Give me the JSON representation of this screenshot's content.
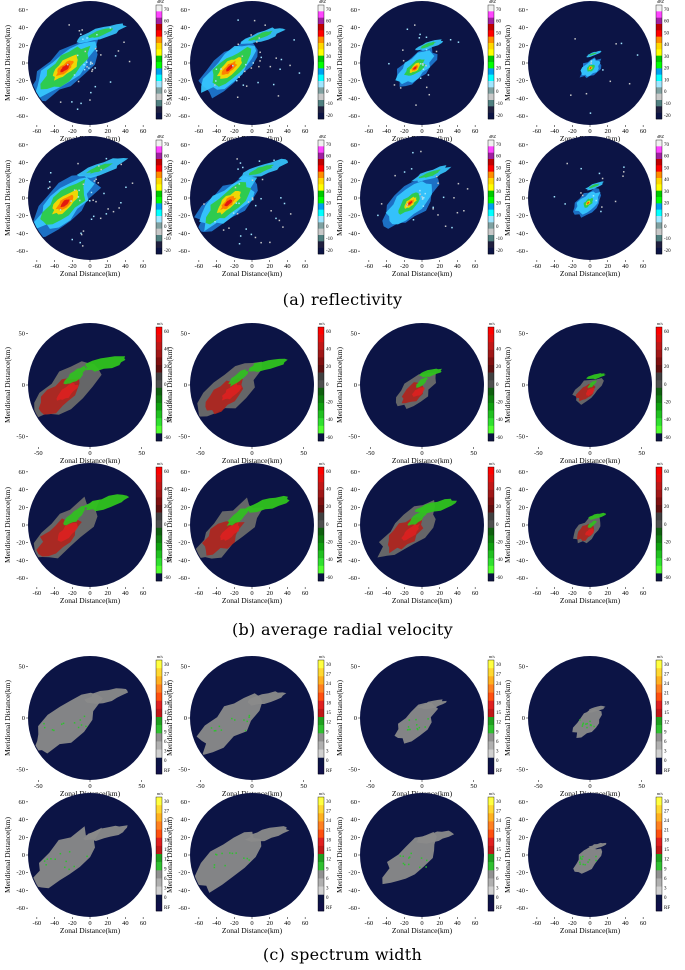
{
  "figure": {
    "captions": {
      "a": "(a)  reflectivity",
      "b": "(b)  average radial velocity",
      "c": "(c)  spectrum width"
    }
  },
  "colors": {
    "background_disk": "#0c1445",
    "echo_gray": "#8a8a8a",
    "velocity_green": "#2fc21e",
    "velocity_red": "#b0221c"
  },
  "chart_data": [
    {
      "id": "reflectivity",
      "type": "heatmap",
      "variable": "reflectivity",
      "xlabel": "Zonal Distance(km)",
      "ylabel": "Meridional Distance(km)",
      "colorbar": {
        "unit": "dBZ",
        "ticks": [
          "70",
          "60",
          "50",
          "40",
          "30",
          "20",
          "10",
          "0",
          "-10",
          "-20"
        ],
        "colors": [
          "#f0f0f0",
          "#ff44ff",
          "#a020a0",
          "#c00000",
          "#ff0000",
          "#ff8c00",
          "#ffd700",
          "#ffff00",
          "#00c800",
          "#00ff00",
          "#00a0f0",
          "#00ffff",
          "#a0e6ff",
          "#7fa0a0",
          "#c8c8c8",
          "#508080",
          "#202040",
          "#0c1445"
        ]
      },
      "rows": [
        {
          "xlim": [
            -70,
            70
          ],
          "ylim": [
            -70,
            70
          ],
          "xticks": [
            "-60",
            "-40",
            "-20",
            "0",
            "20",
            "40",
            "60"
          ],
          "yticks": [
            "60",
            "40",
            "20",
            "0",
            "-20",
            "-40",
            "-60"
          ],
          "panels": [
            {
              "intensity": 0.95,
              "echo_extent": 1.0
            },
            {
              "intensity": 0.9,
              "echo_extent": 0.9
            },
            {
              "intensity": 0.6,
              "echo_extent": 0.6
            },
            {
              "intensity": 0.45,
              "echo_extent": 0.3
            }
          ]
        },
        {
          "xlim": [
            -70,
            70
          ],
          "ylim": [
            -70,
            70
          ],
          "xticks": [
            "-60",
            "-40",
            "-20",
            "0",
            "20",
            "40",
            "60"
          ],
          "yticks": [
            "60",
            "40",
            "20",
            "0",
            "-20",
            "-40",
            "-60"
          ],
          "panels": [
            {
              "intensity": 0.95,
              "echo_extent": 1.0
            },
            {
              "intensity": 0.9,
              "echo_extent": 0.95
            },
            {
              "intensity": 0.55,
              "echo_extent": 0.8
            },
            {
              "intensity": 0.4,
              "echo_extent": 0.4
            }
          ]
        }
      ]
    },
    {
      "id": "velocity",
      "type": "heatmap",
      "variable": "average radial velocity",
      "xlabel": "Zonal Distance(km)",
      "ylabel": "Meridional Distance(km)",
      "colorbar": {
        "unit": "m/s",
        "ticks": [
          "60",
          "40",
          "20",
          "0",
          "-20",
          "-40",
          "-60"
        ],
        "colors": [
          "#ff0000",
          "#e01010",
          "#c01818",
          "#a01818",
          "#801010",
          "#601010",
          "#404040",
          "#505050",
          "#106010",
          "#108010",
          "#10a010",
          "#20c020",
          "#30e030",
          "#50ff30",
          "#0c1445"
        ]
      },
      "rows": [
        {
          "xlim": [
            -60,
            60
          ],
          "ylim": [
            -60,
            60
          ],
          "xticks": [
            "-50",
            "0",
            "50"
          ],
          "yticks": [
            "50",
            "0",
            "-50"
          ],
          "panels": [
            {
              "intensity": 1.0,
              "echo_extent": 1.0
            },
            {
              "intensity": 1.0,
              "echo_extent": 0.9
            },
            {
              "intensity": 0.8,
              "echo_extent": 0.55
            },
            {
              "intensity": 0.6,
              "echo_extent": 0.4
            }
          ]
        },
        {
          "xlim": [
            -70,
            70
          ],
          "ylim": [
            -70,
            70
          ],
          "xticks": [
            "-60",
            "-40",
            "-20",
            "0",
            "20",
            "40",
            "60"
          ],
          "yticks": [
            "60",
            "40",
            "20",
            "0",
            "-20",
            "-40",
            "-60"
          ],
          "panels": [
            {
              "intensity": 1.0,
              "echo_extent": 1.0
            },
            {
              "intensity": 1.0,
              "echo_extent": 0.95
            },
            {
              "intensity": 1.0,
              "echo_extent": 0.85
            },
            {
              "intensity": 0.7,
              "echo_extent": 0.4
            }
          ]
        }
      ]
    },
    {
      "id": "spectrum_width",
      "type": "heatmap",
      "variable": "spectrum width",
      "xlabel": "Zonal Distance(km)",
      "ylabel": "Meridional Distance(km)",
      "colorbar": {
        "unit": "m/s",
        "ticks": [
          "30",
          "27",
          "24",
          "21",
          "18",
          "15",
          "12",
          "9",
          "6",
          "3",
          "0",
          "RF"
        ],
        "colors": [
          "#ffff40",
          "#ffd830",
          "#ffb020",
          "#ff8020",
          "#ff5010",
          "#e02020",
          "#c01818",
          "#20a020",
          "#30c030",
          "#909090",
          "#b0b0b0",
          "#d0d0d0",
          "#0c1445",
          "#10104a"
        ]
      },
      "rows": [
        {
          "xlim": [
            -60,
            60
          ],
          "ylim": [
            -60,
            60
          ],
          "xticks": [
            "-50",
            "0",
            "50"
          ],
          "yticks": [
            "50",
            "0",
            "-50"
          ],
          "panels": [
            {
              "intensity": 0.5,
              "echo_extent": 1.0
            },
            {
              "intensity": 0.5,
              "echo_extent": 0.9
            },
            {
              "intensity": 0.5,
              "echo_extent": 0.6
            },
            {
              "intensity": 0.4,
              "echo_extent": 0.4
            }
          ]
        },
        {
          "xlim": [
            -70,
            70
          ],
          "ylim": [
            -70,
            70
          ],
          "xticks": [
            "-60",
            "-40",
            "-20",
            "0",
            "20",
            "40",
            "60"
          ],
          "yticks": [
            "60",
            "40",
            "20",
            "0",
            "-20",
            "-40",
            "-60"
          ],
          "panels": [
            {
              "intensity": 0.5,
              "echo_extent": 1.0
            },
            {
              "intensity": 0.5,
              "echo_extent": 0.95
            },
            {
              "intensity": 0.5,
              "echo_extent": 0.8
            },
            {
              "intensity": 0.4,
              "echo_extent": 0.4
            }
          ]
        }
      ]
    }
  ]
}
